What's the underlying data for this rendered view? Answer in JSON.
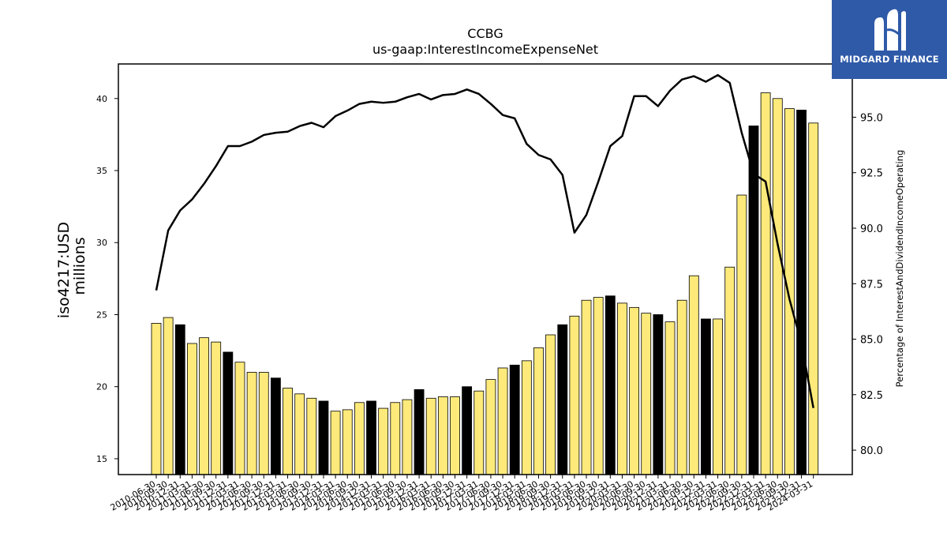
{
  "logo": {
    "text": "MIDGARD FINANCE"
  },
  "chart_data": {
    "type": "bar",
    "title": "CCBG",
    "subtitle": "us-gaap:InterestIncomeExpenseNet",
    "ylabel": "iso4217:USD",
    "ylabel2": "millions",
    "y2label": "Percentage of InterestAndDividendIncomeOperating",
    "ylim": [
      13.9,
      42.4
    ],
    "y2lim": [
      78.9,
      97.4
    ],
    "yticks": [
      15,
      20,
      25,
      30,
      35,
      40
    ],
    "y2ticks": [
      80.0,
      82.5,
      85.0,
      87.5,
      90.0,
      92.5,
      95.0
    ],
    "categories": [
      "2010-06-30",
      "2010-09-30",
      "2010-12-31",
      "2011-03-31",
      "2011-06-30",
      "2011-09-30",
      "2011-12-31",
      "2012-03-31",
      "2012-06-30",
      "2012-09-30",
      "2012-12-31",
      "2013-03-31",
      "2013-06-30",
      "2013-09-30",
      "2013-12-31",
      "2014-03-31",
      "2014-06-30",
      "2014-09-30",
      "2014-12-31",
      "2015-03-31",
      "2015-06-30",
      "2015-09-30",
      "2015-12-31",
      "2016-03-31",
      "2016-06-30",
      "2016-09-30",
      "2016-12-31",
      "2017-03-31",
      "2017-06-30",
      "2017-09-30",
      "2017-12-31",
      "2018-03-31",
      "2018-06-30",
      "2018-09-30",
      "2018-12-31",
      "2019-03-31",
      "2019-06-30",
      "2019-09-30",
      "2019-12-31",
      "2020-03-31",
      "2020-06-30",
      "2020-09-30",
      "2020-12-31",
      "2021-03-31",
      "2021-06-30",
      "2021-09-30",
      "2021-12-31",
      "2022-03-31",
      "2022-06-30",
      "2022-09-30",
      "2022-12-31",
      "2023-03-31",
      "2023-06-30",
      "2023-09-30",
      "2023-12-31",
      "2024-03-31"
    ],
    "values": [
      24.4,
      24.8,
      24.3,
      23.0,
      23.4,
      23.1,
      22.4,
      21.7,
      21.0,
      21.0,
      20.6,
      19.9,
      19.5,
      19.2,
      19.0,
      18.3,
      18.4,
      18.9,
      19.0,
      18.5,
      18.9,
      19.1,
      19.8,
      19.2,
      19.3,
      19.3,
      20.0,
      19.7,
      20.5,
      21.3,
      21.5,
      21.8,
      22.7,
      23.6,
      24.3,
      24.9,
      26.0,
      26.2,
      26.3,
      25.8,
      25.5,
      25.1,
      25.0,
      24.5,
      26.0,
      27.7,
      24.7,
      24.7,
      28.3,
      33.3,
      38.1,
      40.4,
      40.0,
      39.3,
      39.2,
      38.3
    ],
    "highlight": [
      false,
      false,
      true,
      false,
      false,
      false,
      true,
      false,
      false,
      false,
      true,
      false,
      false,
      false,
      true,
      false,
      false,
      false,
      true,
      false,
      false,
      false,
      true,
      false,
      false,
      false,
      true,
      false,
      false,
      false,
      true,
      false,
      false,
      false,
      true,
      false,
      false,
      false,
      true,
      false,
      false,
      false,
      true,
      false,
      false,
      false,
      true,
      false,
      false,
      false,
      true,
      false,
      false,
      false,
      true,
      false
    ],
    "pct_series": [
      87.2,
      89.9,
      90.8,
      91.3,
      92.0,
      92.8,
      93.7,
      93.7,
      93.9,
      94.2,
      94.3,
      94.35,
      94.6,
      94.75,
      94.55,
      95.05,
      95.3,
      95.6,
      95.7,
      95.65,
      95.7,
      95.9,
      96.05,
      95.8,
      96.0,
      96.05,
      96.25,
      96.05,
      95.6,
      95.1,
      94.95,
      93.8,
      93.3,
      93.1,
      92.4,
      89.8,
      90.6,
      92.1,
      93.7,
      94.15,
      95.95,
      95.95,
      95.5,
      96.2,
      96.7,
      96.85,
      96.6,
      96.9,
      96.55,
      94.3,
      92.45,
      92.1,
      89.3,
      86.8,
      84.8,
      81.9
    ],
    "bar_color": "#fdea7a",
    "highlight_color": "#000000",
    "line_color": "#000000",
    "grid": false
  }
}
